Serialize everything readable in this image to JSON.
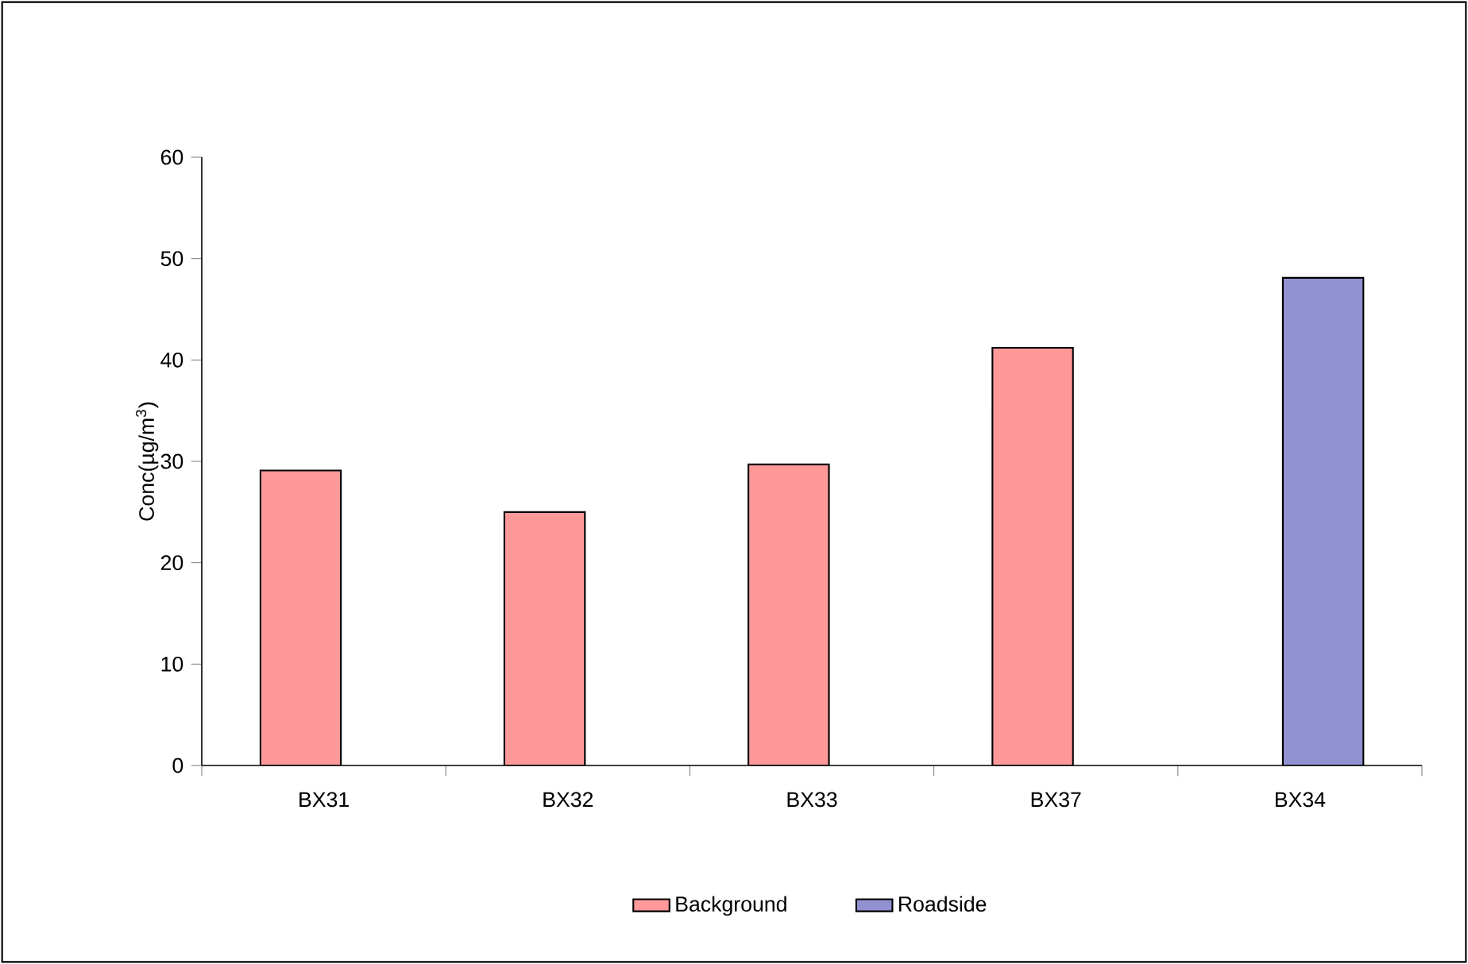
{
  "chart_data": {
    "type": "bar",
    "ylabel": "Conc(µg/m$^{3}$)",
    "categories": [
      "BX31",
      "BX32",
      "BX33",
      "BX37",
      "BX34"
    ],
    "series": [
      {
        "name": "Background",
        "color": "#ff9999",
        "values": [
          29.1,
          25.0,
          29.7,
          41.2,
          null
        ]
      },
      {
        "name": "Roadside",
        "color": "#9191d2",
        "values": [
          null,
          null,
          null,
          null,
          48.1
        ]
      }
    ],
    "ylim": [
      0,
      60
    ],
    "yticks": [
      0,
      10,
      20,
      30,
      40,
      50,
      60
    ],
    "grid": false,
    "legend": "bottom"
  }
}
